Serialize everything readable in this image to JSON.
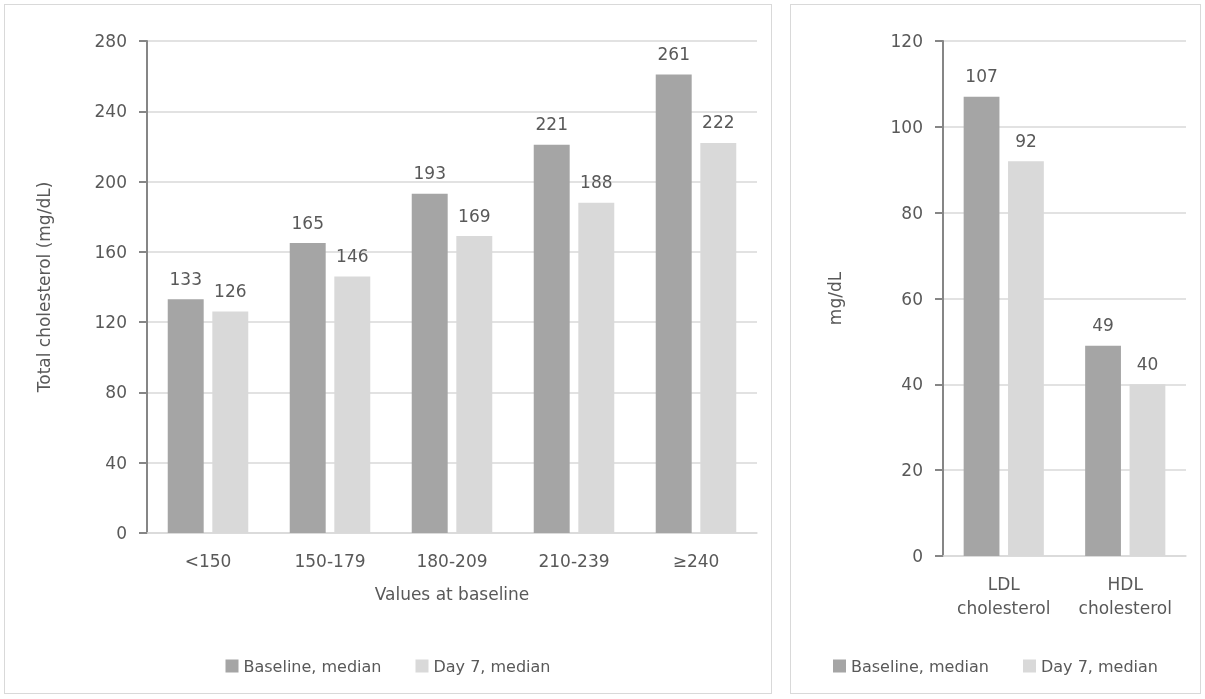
{
  "chart_data": [
    {
      "type": "bar",
      "categories": [
        "<150",
        "150-179",
        "180-209",
        "210-239",
        "≥240"
      ],
      "xlabel": "Values at baseline",
      "ylabel": "Total cholesterol (mg/dL)",
      "ylim": [
        0,
        280
      ],
      "yticks": [
        0,
        40,
        80,
        120,
        160,
        200,
        240,
        280
      ],
      "grid": "y",
      "legend": "bottom",
      "data_labels": true,
      "series": [
        {
          "name": "Baseline, median",
          "color": "#a5a5a5",
          "values": [
            133,
            165,
            193,
            221,
            261
          ]
        },
        {
          "name": "Day 7, median",
          "color": "#d9d9d9",
          "values": [
            126,
            146,
            169,
            188,
            222
          ]
        }
      ]
    },
    {
      "type": "bar",
      "categories": [
        "LDL\ncholesterol",
        "HDL\ncholesterol"
      ],
      "ylabel": "mg/dL",
      "ylim": [
        0,
        120
      ],
      "yticks": [
        0,
        20,
        40,
        60,
        80,
        100,
        120
      ],
      "grid": "y",
      "legend": "bottom",
      "data_labels": true,
      "series": [
        {
          "name": "Baseline, median",
          "color": "#a5a5a5",
          "values": [
            107,
            49
          ]
        },
        {
          "name": "Day 7, median",
          "color": "#d9d9d9",
          "values": [
            92,
            40
          ]
        }
      ]
    }
  ]
}
